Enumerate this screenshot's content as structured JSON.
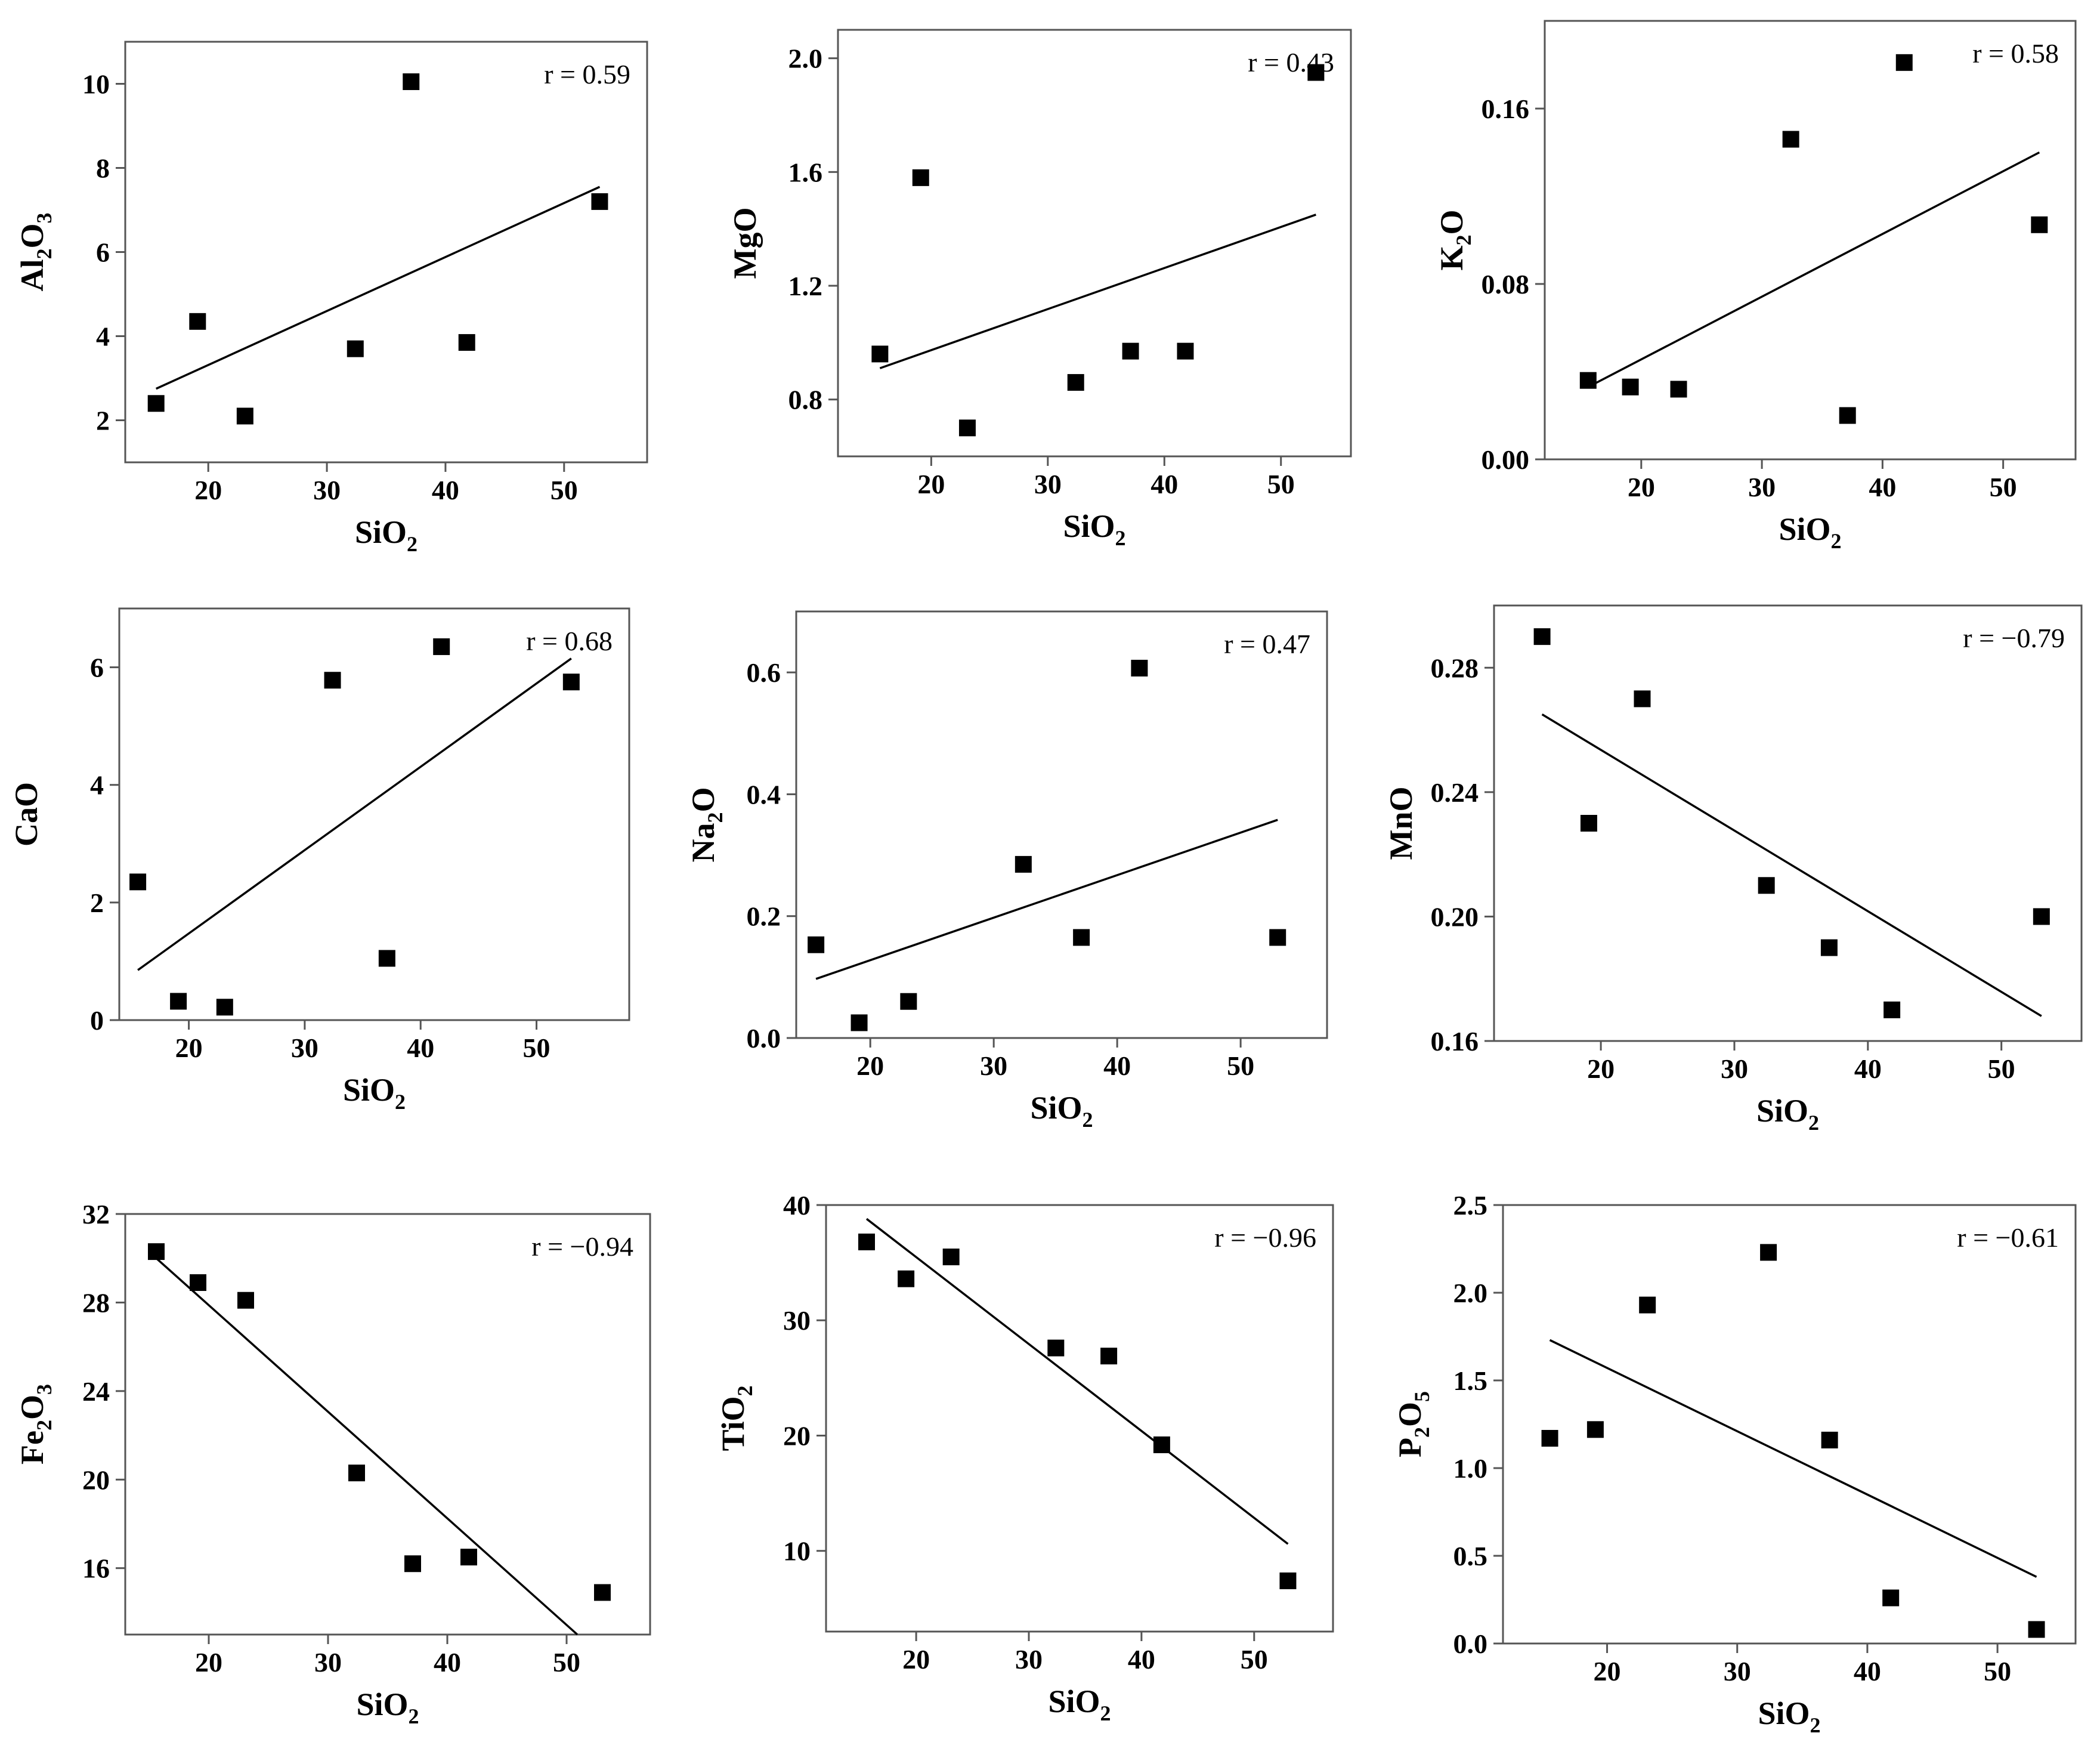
{
  "chart_data": [
    {
      "type": "scatter",
      "xlabel": "SiO2",
      "xlabel_main": "SiO",
      "xlabel_sub": "2",
      "ylabel": "Al2O3",
      "ylabel_parts": [
        [
          "Al",
          false
        ],
        [
          "2",
          true
        ],
        [
          "O",
          false
        ],
        [
          "3",
          true
        ]
      ],
      "xlim": [
        13,
        57
      ],
      "ylim": [
        1,
        11
      ],
      "xticks": [
        20,
        30,
        40,
        50
      ],
      "yticks": [
        2,
        4,
        6,
        8,
        10
      ],
      "ytick_labels": [
        "2",
        "4",
        "6",
        "8",
        "10"
      ],
      "x": [
        15.6,
        19.1,
        23.1,
        32.4,
        37.1,
        41.8,
        53.0
      ],
      "y": [
        2.4,
        4.35,
        2.1,
        3.7,
        10.05,
        3.85,
        7.2
      ],
      "fit": {
        "x": [
          15.6,
          53.0
        ],
        "y": [
          2.75,
          7.55
        ]
      },
      "annotation": "r = 0.59",
      "annotation_pos": "top-right"
    },
    {
      "type": "scatter",
      "xlabel": "SiO2",
      "xlabel_main": "SiO",
      "xlabel_sub": "2",
      "ylabel": "MgO",
      "ylabel_parts": [
        [
          "MgO",
          false
        ]
      ],
      "xlim": [
        12,
        56
      ],
      "ylim": [
        0.6,
        2.1
      ],
      "xticks": [
        20,
        30,
        40,
        50
      ],
      "yticks": [
        0.8,
        1.2,
        1.6,
        2.0
      ],
      "ytick_labels": [
        "0.8",
        "1.2",
        "1.6",
        "2.0"
      ],
      "x": [
        15.6,
        19.1,
        23.1,
        32.4,
        37.1,
        41.8,
        53.0
      ],
      "y": [
        0.96,
        1.58,
        0.7,
        0.86,
        0.97,
        0.97,
        1.95
      ],
      "fit": {
        "x": [
          15.6,
          53.0
        ],
        "y": [
          0.91,
          1.45
        ]
      },
      "annotation": "r = 0.43",
      "annotation_pos": "top-right"
    },
    {
      "type": "scatter",
      "xlabel": "SiO2",
      "xlabel_main": "SiO",
      "xlabel_sub": "2",
      "ylabel": "K2O",
      "ylabel_parts": [
        [
          "K",
          false
        ],
        [
          "2",
          true
        ],
        [
          "O",
          false
        ]
      ],
      "xlim": [
        12,
        56
      ],
      "ylim": [
        0,
        0.2
      ],
      "xticks": [
        20,
        30,
        40,
        50
      ],
      "yticks": [
        0.0,
        0.08,
        0.16
      ],
      "ytick_labels": [
        "0.00",
        "0.08",
        "0.16"
      ],
      "x": [
        15.6,
        19.1,
        23.1,
        32.4,
        37.1,
        41.8,
        53.0
      ],
      "y": [
        0.036,
        0.033,
        0.032,
        0.146,
        0.02,
        0.181,
        0.107
      ],
      "fit": {
        "x": [
          15.6,
          53.0
        ],
        "y": [
          0.033,
          0.14
        ]
      },
      "annotation": "r = 0.58",
      "annotation_pos": "top-right"
    },
    {
      "type": "scatter",
      "xlabel": "SiO2",
      "xlabel_main": "SiO",
      "xlabel_sub": "2",
      "ylabel": "CaO",
      "ylabel_parts": [
        [
          "CaO",
          false
        ]
      ],
      "xlim": [
        14,
        58
      ],
      "ylim": [
        0,
        7
      ],
      "xticks": [
        20,
        30,
        40,
        50
      ],
      "yticks": [
        0,
        2,
        4,
        6
      ],
      "ytick_labels": [
        "0",
        "2",
        "4",
        "6"
      ],
      "x": [
        15.6,
        19.1,
        23.1,
        32.4,
        37.1,
        41.8,
        53.0
      ],
      "y": [
        2.35,
        0.32,
        0.22,
        5.78,
        1.05,
        6.35,
        5.75
      ],
      "fit": {
        "x": [
          15.6,
          53.0
        ],
        "y": [
          0.85,
          6.15
        ]
      },
      "annotation": "r = 0.68",
      "annotation_pos": "top-right"
    },
    {
      "type": "scatter",
      "xlabel": "SiO2",
      "xlabel_main": "SiO",
      "xlabel_sub": "2",
      "ylabel": "Na2O",
      "ylabel_parts": [
        [
          "Na",
          false
        ],
        [
          "2",
          true
        ],
        [
          "O",
          false
        ]
      ],
      "xlim": [
        14,
        57
      ],
      "ylim": [
        0,
        0.7
      ],
      "xticks": [
        20,
        30,
        40,
        50
      ],
      "yticks": [
        0.0,
        0.2,
        0.4,
        0.6
      ],
      "ytick_labels": [
        "0.0",
        "0.2",
        "0.4",
        "0.6"
      ],
      "x": [
        15.6,
        19.1,
        23.1,
        32.4,
        37.1,
        41.8,
        53.0
      ],
      "y": [
        0.153,
        0.025,
        0.06,
        0.285,
        0.165,
        0.607,
        0.165
      ],
      "fit": {
        "x": [
          15.6,
          53.0
        ],
        "y": [
          0.097,
          0.358
        ]
      },
      "annotation": "r = 0.47",
      "annotation_pos": "top-right"
    },
    {
      "type": "scatter",
      "xlabel": "SiO2",
      "xlabel_main": "SiO",
      "xlabel_sub": "2",
      "ylabel": "MnO",
      "ylabel_parts": [
        [
          "MnO",
          false
        ]
      ],
      "xlim": [
        12,
        56
      ],
      "ylim": [
        0.16,
        0.3
      ],
      "xticks": [
        20,
        30,
        40,
        50
      ],
      "yticks": [
        0.16,
        0.2,
        0.24,
        0.28
      ],
      "ytick_labels": [
        "0.16",
        "0.20",
        "0.24",
        "0.28"
      ],
      "x": [
        15.6,
        19.1,
        23.1,
        32.4,
        37.1,
        41.8,
        53.0
      ],
      "y": [
        0.29,
        0.23,
        0.27,
        0.21,
        0.19,
        0.17,
        0.2
      ],
      "fit": {
        "x": [
          15.6,
          53.0
        ],
        "y": [
          0.265,
          0.168
        ]
      },
      "annotation": "r = −0.79",
      "annotation_pos": "top-right"
    },
    {
      "type": "scatter",
      "xlabel": "SiO2",
      "xlabel_main": "SiO",
      "xlabel_sub": "2",
      "ylabel": "Fe2O3",
      "ylabel_parts": [
        [
          "Fe",
          false
        ],
        [
          "2",
          true
        ],
        [
          "O",
          false
        ],
        [
          "3",
          true
        ]
      ],
      "xlim": [
        13,
        57
      ],
      "ylim": [
        13,
        32
      ],
      "xticks": [
        20,
        30,
        40,
        50
      ],
      "yticks": [
        16,
        20,
        24,
        28,
        32
      ],
      "ytick_labels": [
        "16",
        "20",
        "24",
        "28",
        "32"
      ],
      "x": [
        15.6,
        19.1,
        23.1,
        32.4,
        37.1,
        41.8,
        53.0
      ],
      "y": [
        30.3,
        28.9,
        28.1,
        20.3,
        16.2,
        16.5,
        14.9
      ],
      "fit": {
        "x": [
          15.6,
          50.9
        ],
        "y": [
          30.0,
          13.0
        ]
      },
      "annotation": "r = −0.94",
      "annotation_pos": "top-right"
    },
    {
      "type": "scatter",
      "xlabel": "SiO2",
      "xlabel_main": "SiO",
      "xlabel_sub": "2",
      "ylabel": "TiO2",
      "ylabel_parts": [
        [
          "TiO",
          false
        ],
        [
          "2",
          true
        ]
      ],
      "xlim": [
        12,
        57
      ],
      "ylim": [
        3,
        40
      ],
      "xticks": [
        20,
        30,
        40,
        50
      ],
      "yticks": [
        10,
        20,
        30,
        40
      ],
      "ytick_labels": [
        "10",
        "20",
        "30",
        "40"
      ],
      "x": [
        15.6,
        19.1,
        23.1,
        32.4,
        37.1,
        41.8,
        53.0
      ],
      "y": [
        36.8,
        33.6,
        35.5,
        27.6,
        26.9,
        19.2,
        7.4
      ],
      "fit": {
        "x": [
          15.6,
          53.0
        ],
        "y": [
          38.8,
          10.6
        ]
      },
      "annotation": "r = −0.96",
      "annotation_pos": "top-right"
    },
    {
      "type": "scatter",
      "xlabel": "SiO2",
      "xlabel_main": "SiO",
      "xlabel_sub": "2",
      "ylabel": "P2O5",
      "ylabel_parts": [
        [
          "P",
          false
        ],
        [
          "2",
          true
        ],
        [
          "O",
          false
        ],
        [
          "5",
          true
        ]
      ],
      "xlim": [
        12,
        56
      ],
      "ylim": [
        0,
        2.5
      ],
      "xticks": [
        20,
        30,
        40,
        50
      ],
      "yticks": [
        0.0,
        0.5,
        1.0,
        1.5,
        2.0,
        2.5
      ],
      "ytick_labels": [
        "0.0",
        "0.5",
        "1.0",
        "1.5",
        "2.0",
        "2.5"
      ],
      "x": [
        15.6,
        19.1,
        23.1,
        32.4,
        37.1,
        41.8,
        53.0
      ],
      "y": [
        1.17,
        1.22,
        1.93,
        2.23,
        1.16,
        0.26,
        0.08
      ],
      "fit": {
        "x": [
          15.6,
          53.0
        ],
        "y": [
          1.73,
          0.38
        ]
      },
      "annotation": "r = −0.61",
      "annotation_pos": "top-right"
    }
  ]
}
